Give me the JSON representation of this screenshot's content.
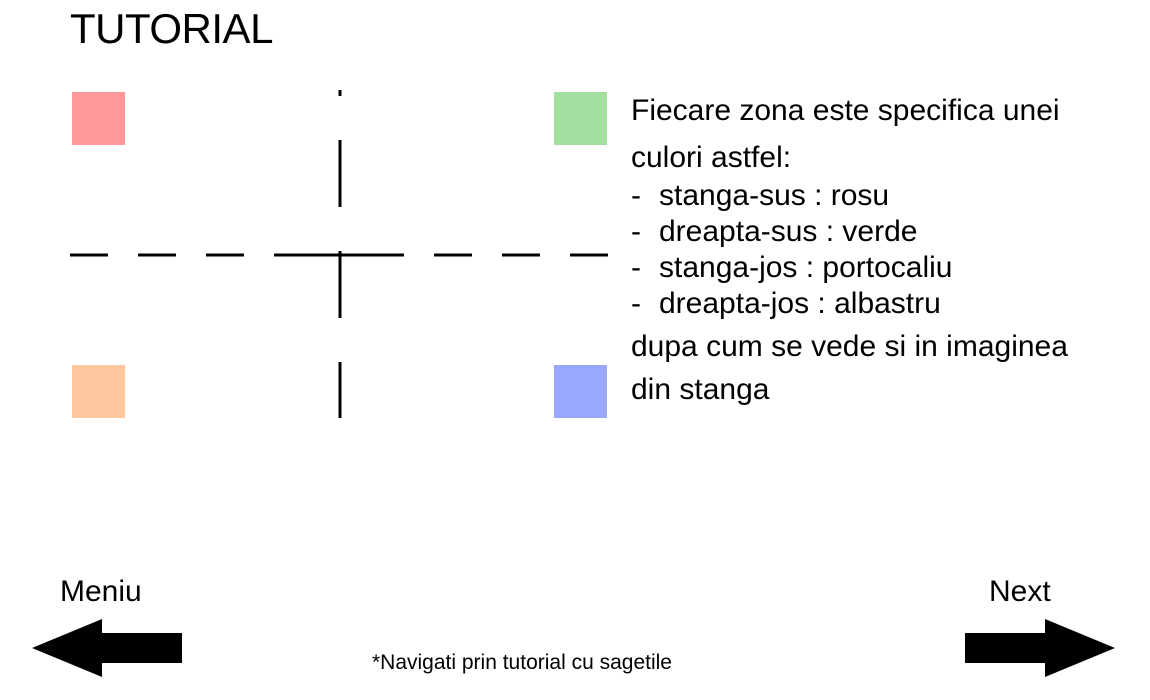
{
  "title": "TUTORIAL",
  "zones": [
    {
      "id": "top-left",
      "color": "#ff9999"
    },
    {
      "id": "top-right",
      "color": "#a3e0a0"
    },
    {
      "id": "bottom-left",
      "color": "#ffc89e"
    },
    {
      "id": "bottom-right",
      "color": "#99a8ff"
    }
  ],
  "instructions": {
    "intro_line1": "Fiecare zona este specifica unei",
    "intro_line2": "culori astfel:",
    "items": [
      {
        "dash": "-",
        "text": "stanga-sus : rosu"
      },
      {
        "dash": "-",
        "text": "dreapta-sus : verde"
      },
      {
        "dash": "-",
        "text": "stanga-jos : portocaliu"
      },
      {
        "dash": "-",
        "text": "dreapta-jos : albastru"
      }
    ],
    "outro_line1": "dupa cum se vede si in imaginea",
    "outro_line2": "din stanga"
  },
  "nav": {
    "back_label": "Meniu",
    "next_label": "Next",
    "back_icon": "arrow-left-icon",
    "next_icon": "arrow-right-icon"
  },
  "footnote": "*Navigati prin tutorial cu sagetile"
}
